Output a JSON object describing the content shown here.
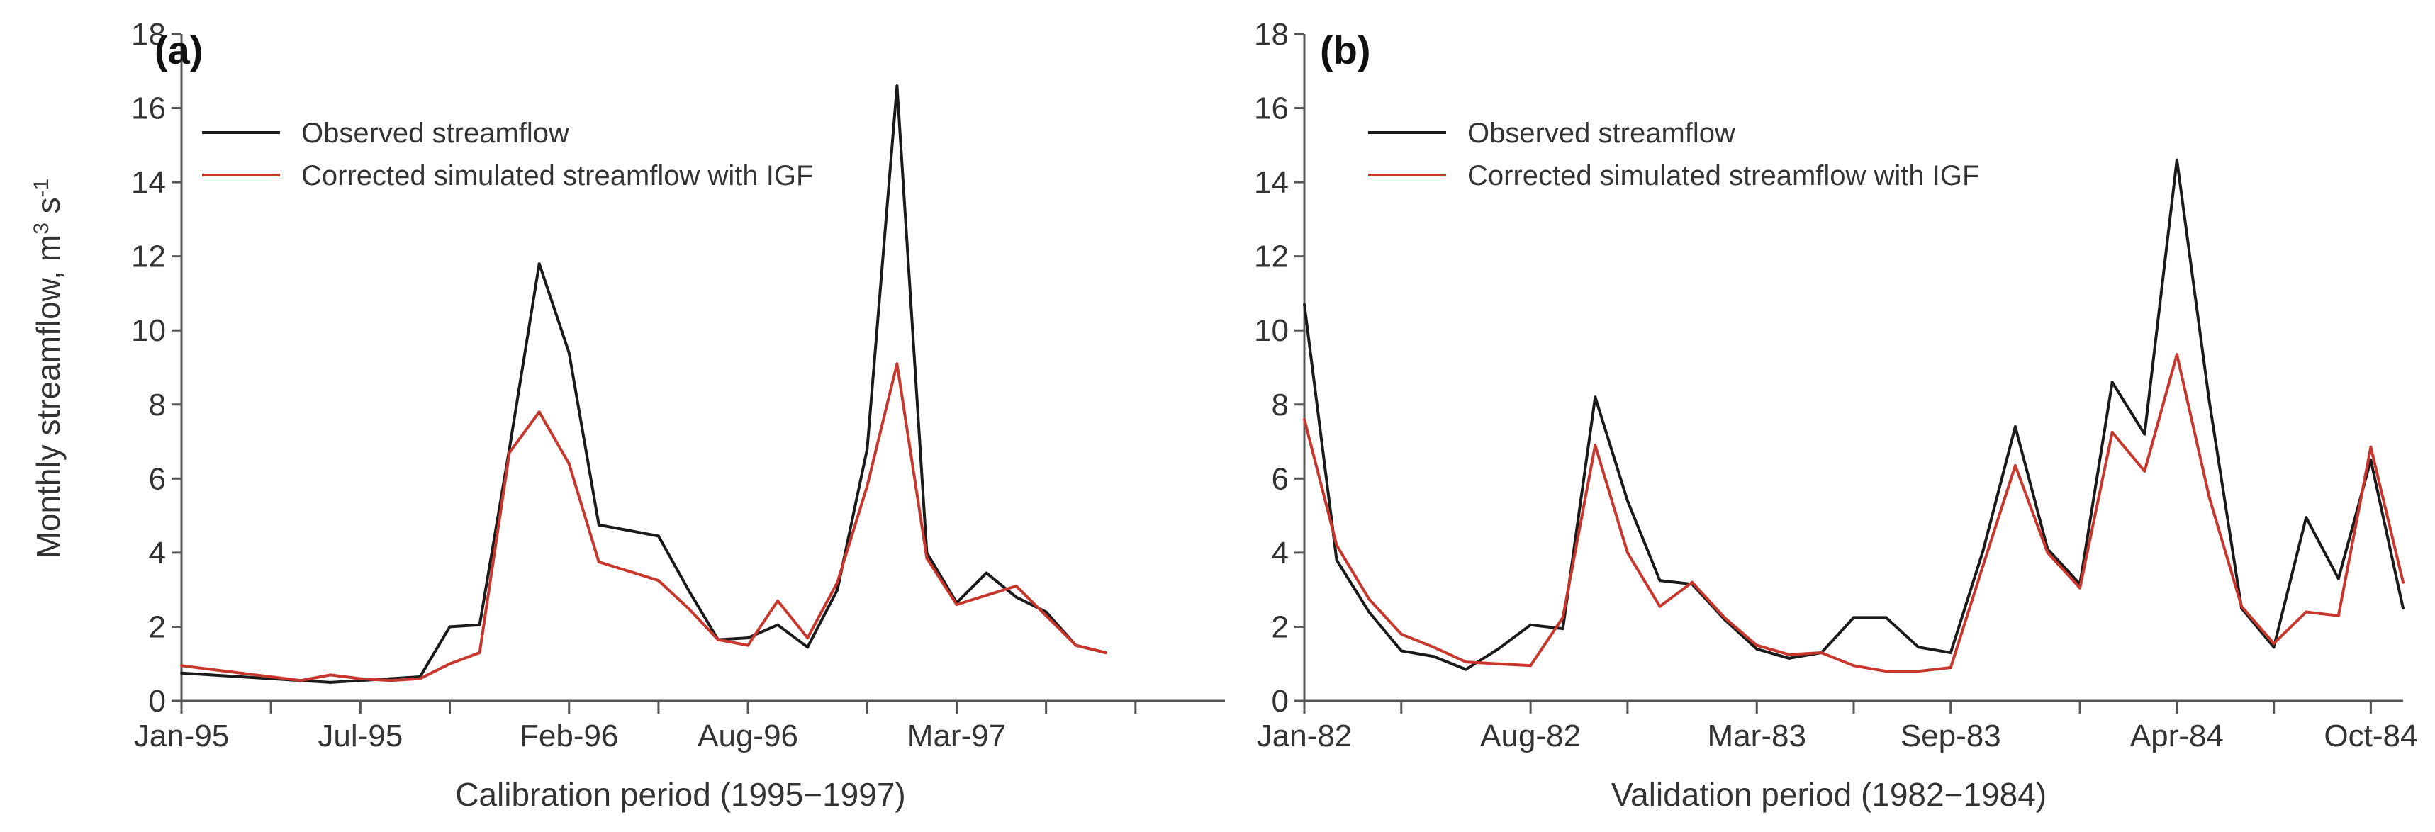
{
  "figure": {
    "ylabel_main": "Monthly streamflow, m",
    "ylabel_sup": "3",
    "ylabel_mid": " s",
    "ylabel_exp": "-1"
  },
  "colors": {
    "observed": "#1a1a1a",
    "simulated": "#c8372d",
    "axis": "#555555"
  },
  "chart_data": [
    {
      "type": "line",
      "panel": "(a)",
      "xlabel": "Calibration period (1995−1997)",
      "ylabel": "Monthly streamflow, m3 s-1",
      "ylim": [
        0,
        18
      ],
      "yticks": [
        0,
        2,
        4,
        6,
        8,
        10,
        12,
        14,
        16,
        18
      ],
      "yticklabels": [
        "0",
        "2",
        "4",
        "6",
        "8",
        "10",
        "12",
        "14",
        "16",
        "18"
      ],
      "x_index_range": [
        0,
        35
      ],
      "xticks": [
        0,
        6,
        13,
        19,
        26
      ],
      "xticklabels": [
        "Jan-95",
        "Jul-95",
        "Feb-96",
        "Aug-96",
        "Mar-97"
      ],
      "minor_xticks": [
        3,
        9,
        16,
        23,
        29,
        32
      ],
      "legend_position": "top-left",
      "series": [
        {
          "name": "Observed streamflow",
          "color_key": "observed",
          "values": [
            0.75,
            0.7,
            0.65,
            0.6,
            0.55,
            0.5,
            0.55,
            0.6,
            0.65,
            2.0,
            2.05,
            6.8,
            11.8,
            9.4,
            4.75,
            4.6,
            4.45,
            3.0,
            1.65,
            1.7,
            2.05,
            1.45,
            3.0,
            6.8,
            16.6,
            4.0,
            2.65,
            3.45,
            2.8,
            2.4,
            1.5,
            1.3
          ]
        },
        {
          "name": "Corrected simulated streamflow with IGF",
          "color_key": "simulated",
          "values": [
            0.95,
            0.85,
            0.75,
            0.65,
            0.55,
            0.7,
            0.6,
            0.55,
            0.6,
            1.0,
            1.3,
            6.7,
            7.8,
            6.4,
            3.75,
            3.5,
            3.25,
            2.5,
            1.65,
            1.5,
            2.7,
            1.7,
            3.2,
            5.8,
            9.1,
            3.85,
            2.6,
            2.85,
            3.1,
            2.3,
            1.5,
            1.3
          ]
        }
      ]
    },
    {
      "type": "line",
      "panel": "(b)",
      "xlabel": "Validation period (1982−1984)",
      "ylabel": "",
      "ylim": [
        0,
        18
      ],
      "yticks": [
        0,
        2,
        4,
        6,
        8,
        10,
        12,
        14,
        16,
        18
      ],
      "yticklabels": [
        "0",
        "2",
        "4",
        "6",
        "8",
        "10",
        "12",
        "14",
        "16",
        "18"
      ],
      "x_index_range": [
        0,
        34
      ],
      "xticks": [
        0,
        7,
        14,
        20,
        27,
        33
      ],
      "xticklabels": [
        "Jan-82",
        "Aug-82",
        "Mar-83",
        "Sep-83",
        "Apr-84",
        "Oct-84"
      ],
      "minor_xticks": [
        3,
        10,
        17,
        24,
        30
      ],
      "legend_position": "top-left",
      "series": [
        {
          "name": "Observed streamflow",
          "color_key": "observed",
          "values": [
            10.7,
            3.8,
            2.4,
            1.35,
            1.2,
            0.85,
            1.4,
            2.05,
            1.95,
            8.2,
            5.4,
            3.25,
            3.15,
            2.2,
            1.4,
            1.15,
            1.3,
            2.25,
            2.25,
            1.45,
            1.3,
            4.05,
            7.4,
            4.1,
            3.15,
            8.6,
            7.2,
            14.6,
            8.1,
            2.5,
            1.45,
            4.95,
            3.3,
            6.5,
            2.5
          ]
        },
        {
          "name": "Corrected simulated streamflow with IGF",
          "color_key": "simulated",
          "values": [
            7.6,
            4.2,
            2.75,
            1.8,
            1.45,
            1.05,
            1.0,
            0.95,
            2.25,
            6.9,
            4.0,
            2.55,
            3.2,
            2.25,
            1.5,
            1.25,
            1.3,
            0.95,
            0.8,
            0.8,
            0.9,
            3.65,
            6.35,
            4.0,
            3.05,
            7.25,
            6.2,
            9.35,
            5.5,
            2.55,
            1.55,
            2.4,
            2.3,
            6.85,
            3.2
          ]
        }
      ]
    }
  ]
}
